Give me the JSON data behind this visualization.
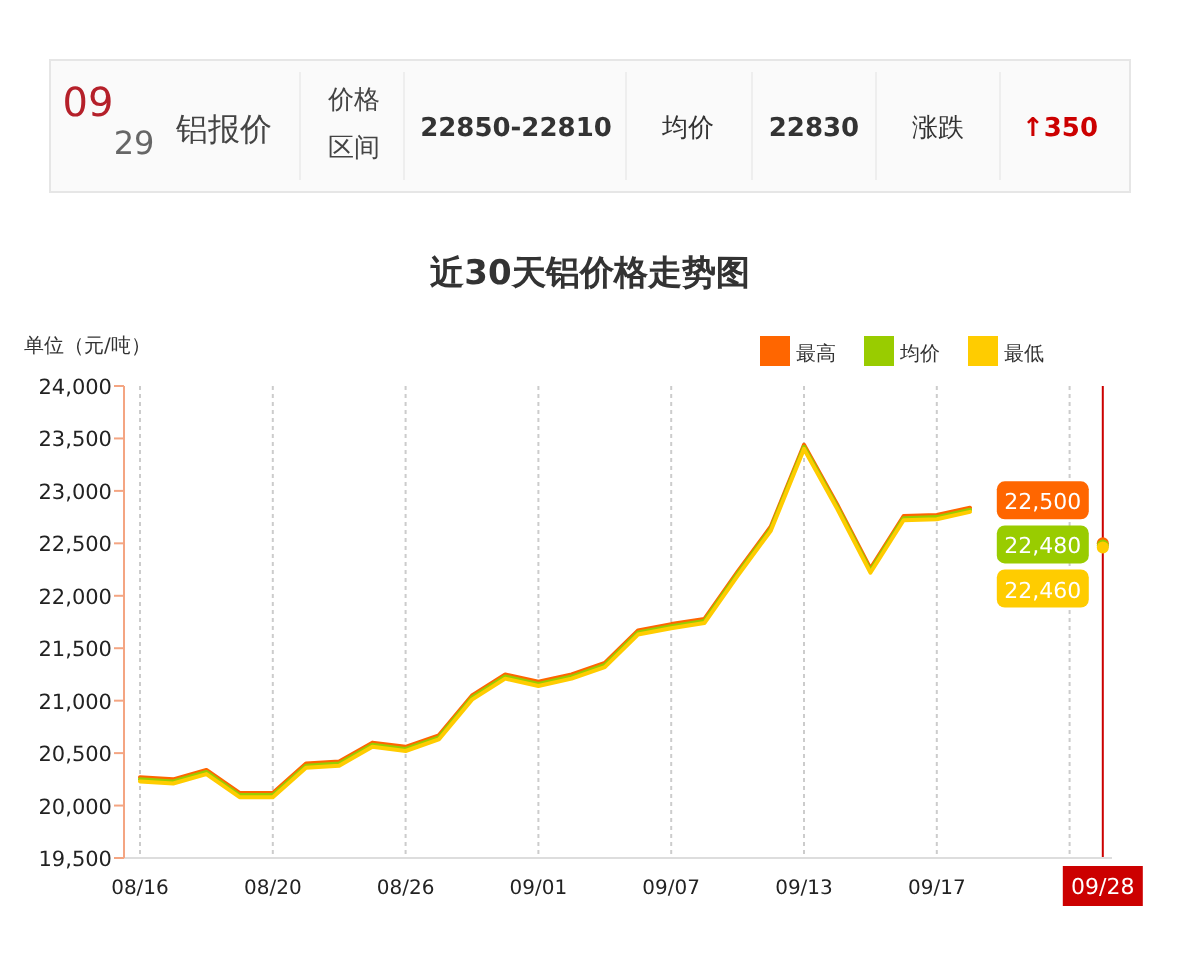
{
  "chart_data": [
    {
      "type": "other",
      "annotations": [
        "09",
        "29",
        "铝报价",
        "价格区间",
        "22850-22810",
        "均价",
        "22830",
        "涨跌",
        "↑350"
      ]
    },
    {
      "type": "line",
      "title": "近30天铝价格走势图",
      "ylabel": "单位（元/吨）",
      "categories": [
        "08/16",
        null,
        null,
        null,
        "08/20",
        null,
        null,
        null,
        "08/26",
        null,
        null,
        null,
        "09/01",
        null,
        null,
        null,
        "09/07",
        null,
        null,
        null,
        "09/13",
        null,
        null,
        null,
        "09/17",
        null,
        null,
        null,
        null,
        "09/28"
      ],
      "ylim": [
        19500,
        24000
      ],
      "yticks": [
        {
          "value": 19500,
          "label": "19,500"
        },
        {
          "value": 20000,
          "label": "20,000"
        },
        {
          "value": 20500,
          "label": "20,500"
        },
        {
          "value": 21000,
          "label": "21,000"
        },
        {
          "value": 21500,
          "label": "21,500"
        },
        {
          "value": 22000,
          "label": "22,000"
        },
        {
          "value": 22500,
          "label": "22,500"
        },
        {
          "value": 23000,
          "label": "23,000"
        },
        {
          "value": 23500,
          "label": "23,500"
        },
        {
          "value": 24000,
          "label": "24,000"
        }
      ],
      "grid": "x",
      "legend": "top right",
      "marker": "none",
      "line_style": "solid",
      "ref_lines": [
        {
          "axis": "x",
          "value": "09/28",
          "color": "#cc0000"
        }
      ],
      "series": [
        {
          "name": "最高",
          "color": "#ff6600",
          "values": [
            20270,
            20250,
            20340,
            20120,
            20120,
            20400,
            20420,
            20600,
            20560,
            20670,
            21050,
            21250,
            21180,
            21250,
            21360,
            21670,
            21730,
            21780,
            22230,
            22660,
            23440,
            22870,
            22260,
            22760,
            22770,
            22840,
            null,
            null,
            null,
            22500
          ],
          "value_labels": [
            null,
            null,
            null,
            null,
            null,
            null,
            null,
            null,
            null,
            null,
            null,
            null,
            null,
            null,
            null,
            null,
            null,
            null,
            null,
            null,
            null,
            null,
            null,
            null,
            null,
            null,
            null,
            null,
            null,
            "22,500"
          ]
        },
        {
          "name": "均价",
          "color": "#99cc00",
          "values": [
            20250,
            20230,
            20320,
            20100,
            20100,
            20380,
            20400,
            20580,
            20540,
            20650,
            21030,
            21230,
            21160,
            21230,
            21340,
            21650,
            21710,
            21760,
            22210,
            22640,
            23420,
            22850,
            22240,
            22740,
            22750,
            22820,
            null,
            null,
            null,
            22480
          ],
          "value_labels": [
            null,
            null,
            null,
            null,
            null,
            null,
            null,
            null,
            null,
            null,
            null,
            null,
            null,
            null,
            null,
            null,
            null,
            null,
            null,
            null,
            null,
            null,
            null,
            null,
            null,
            null,
            null,
            null,
            null,
            "22,480"
          ]
        },
        {
          "name": "最低",
          "color": "#ffcc00",
          "values": [
            20230,
            20210,
            20300,
            20080,
            20080,
            20360,
            20380,
            20560,
            20520,
            20630,
            21010,
            21210,
            21140,
            21210,
            21320,
            21630,
            21690,
            21740,
            22190,
            22620,
            23400,
            22830,
            22220,
            22720,
            22730,
            22800,
            null,
            null,
            null,
            22460
          ],
          "value_labels": [
            null,
            null,
            null,
            null,
            null,
            null,
            null,
            null,
            null,
            null,
            null,
            null,
            null,
            null,
            null,
            null,
            null,
            null,
            null,
            null,
            null,
            null,
            null,
            null,
            null,
            null,
            null,
            null,
            null,
            "22,460"
          ]
        }
      ]
    }
  ]
}
